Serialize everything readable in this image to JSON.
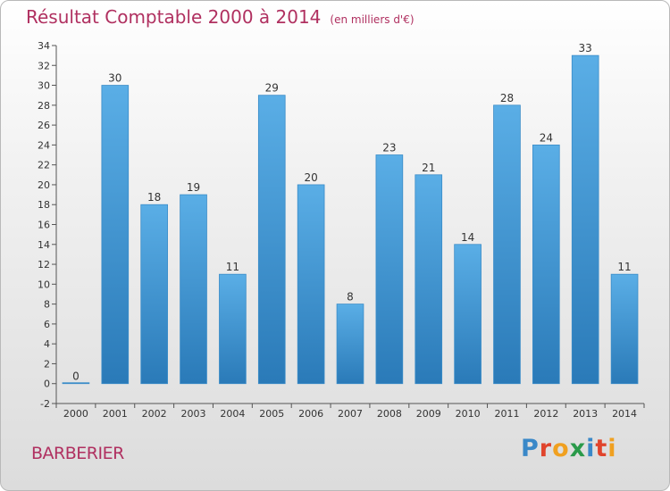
{
  "title": "Résultat Comptable 2000 à 2014",
  "unit": "(en milliers d'€)",
  "commune": "BARBERIER",
  "logo": {
    "letters": [
      "P",
      "r",
      "o",
      "x",
      "i",
      "t",
      "i"
    ],
    "colors": [
      "#3a88c8",
      "#e0442c",
      "#f0a020",
      "#2a9a4a",
      "#3a88c8",
      "#e0442c",
      "#f0a020"
    ]
  },
  "colors": {
    "bar": "#4a9edc",
    "bar_dark": "#2a78b8",
    "title": "#b03060"
  },
  "chart_data": {
    "type": "bar",
    "title": "Résultat Comptable 2000 à 2014",
    "xlabel": "",
    "ylabel": "",
    "ylim": [
      -2,
      34
    ],
    "yticks": [
      -2,
      0,
      2,
      4,
      6,
      8,
      10,
      12,
      14,
      16,
      18,
      20,
      22,
      24,
      26,
      28,
      30,
      32,
      34
    ],
    "categories": [
      "2000",
      "2001",
      "2002",
      "2003",
      "2004",
      "2005",
      "2006",
      "2007",
      "2008",
      "2009",
      "2010",
      "2011",
      "2012",
      "2013",
      "2014"
    ],
    "values": [
      0,
      30,
      18,
      19,
      11,
      29,
      20,
      8,
      23,
      21,
      14,
      28,
      24,
      33,
      11
    ],
    "grid": false,
    "legend": "none"
  }
}
